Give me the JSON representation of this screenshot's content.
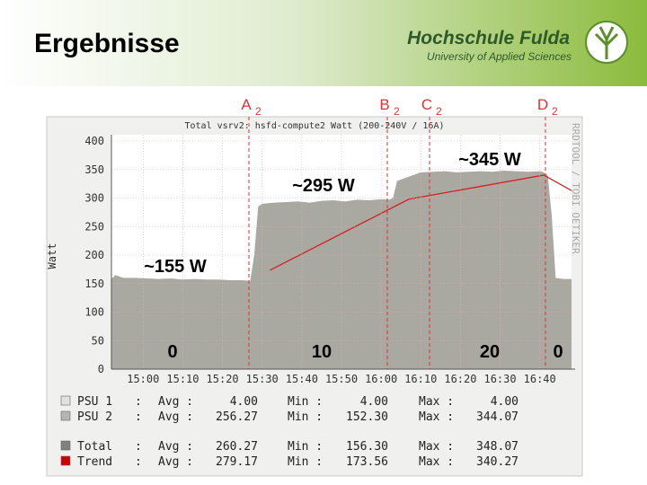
{
  "slide": {
    "title": "Ergebnisse",
    "logo_name": "Hochschule Fulda",
    "logo_sub": "University of Applied Sciences"
  },
  "chart_data": {
    "type": "area",
    "title": "Total vsrv2: hsfd-compute2 Watt (200-240V / 16A)",
    "y_label": "Watt",
    "side_label": "RRDTOOL / TOBI OETIKER",
    "xlim": [
      892,
      1008
    ],
    "xticks": [
      {
        "value": 900,
        "label": "15:00"
      },
      {
        "value": 910,
        "label": "15:10"
      },
      {
        "value": 920,
        "label": "15:20"
      },
      {
        "value": 930,
        "label": "15:30"
      },
      {
        "value": 940,
        "label": "15:40"
      },
      {
        "value": 950,
        "label": "15:50"
      },
      {
        "value": 960,
        "label": "16:00"
      },
      {
        "value": 970,
        "label": "16:10"
      },
      {
        "value": 980,
        "label": "16:20"
      },
      {
        "value": 990,
        "label": "16:30"
      },
      {
        "value": 1000,
        "label": "16:40"
      }
    ],
    "ylim": [
      0,
      400
    ],
    "yticks": [
      0,
      50,
      100,
      150,
      200,
      250,
      300,
      350,
      400
    ],
    "grid": true,
    "series": [
      {
        "color": "#aaa9a1",
        "x": [
          892,
          893,
          895,
          898,
          901,
          904,
          907,
          910,
          913,
          916,
          919,
          922,
          925,
          927,
          928,
          929,
          930,
          933,
          936,
          939,
          942,
          945,
          948,
          951,
          954,
          957,
          960,
          962,
          963,
          964,
          966,
          968,
          970,
          973,
          976,
          979,
          982,
          985,
          988,
          991,
          994,
          997,
          1000,
          1001,
          1002,
          1003,
          1004,
          1006,
          1008
        ],
        "values": [
          158,
          165,
          160,
          160,
          159,
          158,
          159,
          157,
          158,
          157,
          157,
          156,
          156,
          155,
          200,
          285,
          290,
          292,
          293,
          294,
          292,
          295,
          296,
          294,
          297,
          296,
          298,
          297,
          300,
          330,
          335,
          340,
          345,
          346,
          347,
          345,
          346,
          347,
          346,
          348,
          347,
          346,
          347,
          345,
          340,
          270,
          160,
          158,
          158
        ]
      },
      {
        "color": "#d42020",
        "x": [
          932,
          967,
          1001,
          1008
        ],
        "values": [
          173.56,
          298,
          340.27,
          313
        ]
      }
    ],
    "markers": [
      {
        "letter": "A",
        "sub": "2"
      },
      {
        "letter": "B",
        "sub": "2"
      },
      {
        "letter": "C",
        "sub": "2"
      },
      {
        "letter": "D",
        "sub": "2"
      }
    ],
    "annotations": [
      "~155 W",
      "~295 W",
      "~345 W",
      "0",
      "10",
      "20",
      "0"
    ],
    "legend_stat_labels": [
      "Avg :",
      "Min :",
      "Max :"
    ],
    "legend": [
      {
        "name": "PSU 1",
        "color": "#e2e2dc",
        "sep": ":",
        "avg": "4.00",
        "min": "4.00",
        "max": "4.00"
      },
      {
        "name": "PSU 2",
        "color": "#b5b5b0",
        "sep": ":",
        "avg": "256.27",
        "min": "152.30",
        "max": "344.07"
      },
      {
        "name": "Total",
        "color": "#808080",
        "sep": ":",
        "avg": "260.27",
        "min": "156.30",
        "max": "348.07"
      },
      {
        "name": "Trend",
        "color": "#cc0000",
        "sep": ":",
        "avg": "279.17",
        "min": "173.56",
        "max": "340.27"
      }
    ]
  }
}
